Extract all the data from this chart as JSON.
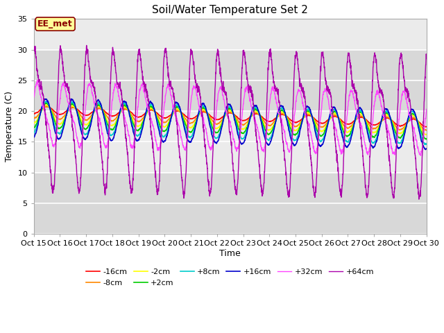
{
  "title": "Soil/Water Temperature Set 2",
  "xlabel": "Time",
  "ylabel": "Temperature (C)",
  "ylim": [
    0,
    35
  ],
  "xlim": [
    0,
    15
  ],
  "x_tick_labels": [
    "Oct 15",
    "Oct 16",
    "Oct 17",
    "Oct 18",
    "Oct 19",
    "Oct 20",
    "Oct 21",
    "Oct 22",
    "Oct 23",
    "Oct 24",
    "Oct 25",
    "Oct 26",
    "Oct 27",
    "Oct 28",
    "Oct 29",
    "Oct 30"
  ],
  "annotation_text": "EE_met",
  "annotation_box_color": "#ffff99",
  "annotation_border_color": "#8B0000",
  "series": [
    {
      "label": "-16cm",
      "color": "#ff0000",
      "base": 20.2,
      "amp": 0.6,
      "phase": 0.0,
      "trend": -0.145
    },
    {
      "label": "-8cm",
      "color": "#ff8800",
      "base": 19.8,
      "amp": 1.0,
      "phase": 0.05,
      "trend": -0.13
    },
    {
      "label": "-2cm",
      "color": "#ffff00",
      "base": 19.5,
      "amp": 1.5,
      "phase": 0.1,
      "trend": -0.12
    },
    {
      "label": "+2cm",
      "color": "#00cc00",
      "base": 19.3,
      "amp": 2.0,
      "phase": 0.15,
      "trend": -0.12
    },
    {
      "label": "+8cm",
      "color": "#00cccc",
      "base": 19.0,
      "amp": 2.6,
      "phase": 0.2,
      "trend": -0.12
    },
    {
      "label": "+16cm",
      "color": "#0000cc",
      "base": 18.8,
      "amp": 3.2,
      "phase": 0.25,
      "trend": -0.12
    },
    {
      "label": "+32cm",
      "color": "#ff44ff",
      "base": 19.5,
      "amp": 4.5,
      "phase": 0.35,
      "trend": -0.1
    },
    {
      "label": "+64cm",
      "color": "#aa00aa",
      "base": 19.5,
      "amp": 9.5,
      "phase": 0.6,
      "trend": -0.07
    }
  ],
  "bg_color": "#ffffff",
  "plot_bg_color_main": "#f0f0f0",
  "plot_bg_color_alt": "#e0e0e0",
  "grid_color": "#ffffff",
  "title_fontsize": 11,
  "axis_label_fontsize": 9,
  "tick_fontsize": 8,
  "legend_fontsize": 8
}
